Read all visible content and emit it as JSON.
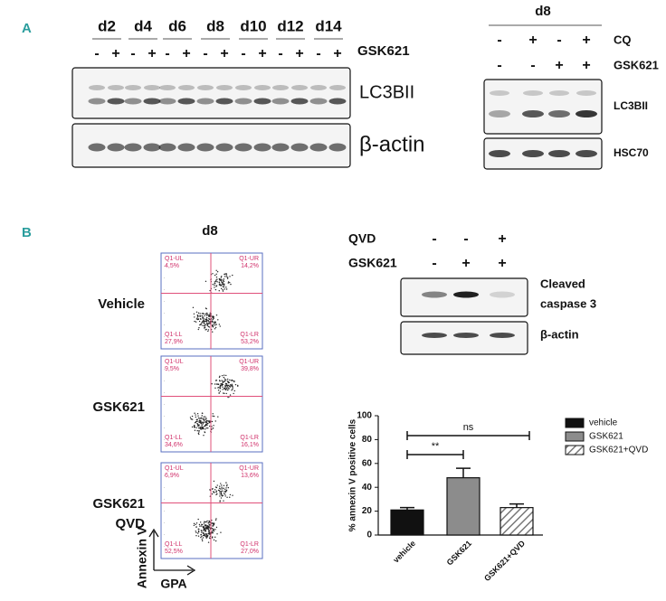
{
  "panel_a": {
    "label": "A",
    "timecourse": {
      "timepoints": [
        "d2",
        "d4",
        "d6",
        "d8",
        "d10",
        "d12",
        "d14"
      ],
      "gsk621_signs": [
        "-",
        "+",
        "-",
        "+",
        "-",
        "+",
        "-",
        "+",
        "-",
        "+",
        "-",
        "+",
        "-",
        "+"
      ],
      "treatment_label": "GSK621",
      "blots": [
        "LC3BII",
        "β-actin"
      ]
    },
    "d8_blot": {
      "title": "d8",
      "rows": [
        {
          "label": "CQ",
          "signs": [
            "-",
            "+",
            "-",
            "+"
          ]
        },
        {
          "label": "GSK621",
          "signs": [
            "-",
            "-",
            "+",
            "+"
          ]
        }
      ],
      "blots": [
        "LC3BII",
        "HSC70"
      ]
    }
  },
  "panel_b": {
    "label": "B",
    "flow": {
      "title": "d8",
      "conditions": [
        {
          "label": [
            "Vehicle"
          ],
          "quadrants": [
            [
              "Q1-UL",
              "4,5%"
            ],
            [
              "Q1-UR",
              "14,2%"
            ],
            [
              "Q1-LL",
              "27,9%"
            ],
            [
              "Q1-LR",
              "53,2%"
            ]
          ]
        },
        {
          "label": [
            "GSK621"
          ],
          "quadrants": [
            [
              "Q1-UL",
              "9,5%"
            ],
            [
              "Q1-UR",
              "39,8%"
            ],
            [
              "Q1-LL",
              "34,6%"
            ],
            [
              "Q1-LR",
              "16,1%"
            ]
          ]
        },
        {
          "label": [
            "GSK621",
            "QVD"
          ],
          "quadrants": [
            [
              "Q1-UL",
              "6,9%"
            ],
            [
              "Q1-UR",
              "13,6%"
            ],
            [
              "Q1-LL",
              "52,5%"
            ],
            [
              "Q1-LR",
              "27,0%"
            ]
          ]
        }
      ],
      "y_axis": "Annexin V",
      "x_axis": "GPA"
    },
    "western": {
      "rows": [
        {
          "label": "QVD",
          "signs": [
            "-",
            "-",
            "+"
          ]
        },
        {
          "label": "GSK621",
          "signs": [
            "-",
            "+",
            "+"
          ]
        }
      ],
      "blots": [
        [
          "Cleaved",
          "caspase 3"
        ],
        [
          "β-actin"
        ]
      ]
    }
  },
  "chart_data": {
    "type": "bar",
    "y_label": "% annexin V positive cells",
    "categories": [
      "vehicle",
      "GSK621",
      "GSK621+QVD"
    ],
    "values": [
      21,
      48,
      23
    ],
    "errors": [
      2,
      8,
      3
    ],
    "colors": [
      "#111111",
      "#8c8c8c",
      "#ffffff"
    ],
    "hatch": [
      false,
      false,
      true
    ],
    "ylim": [
      0,
      100
    ],
    "yticks": [
      0,
      20,
      40,
      60,
      80,
      100
    ],
    "legend": "right",
    "annotations": [
      "**",
      "ns"
    ]
  }
}
